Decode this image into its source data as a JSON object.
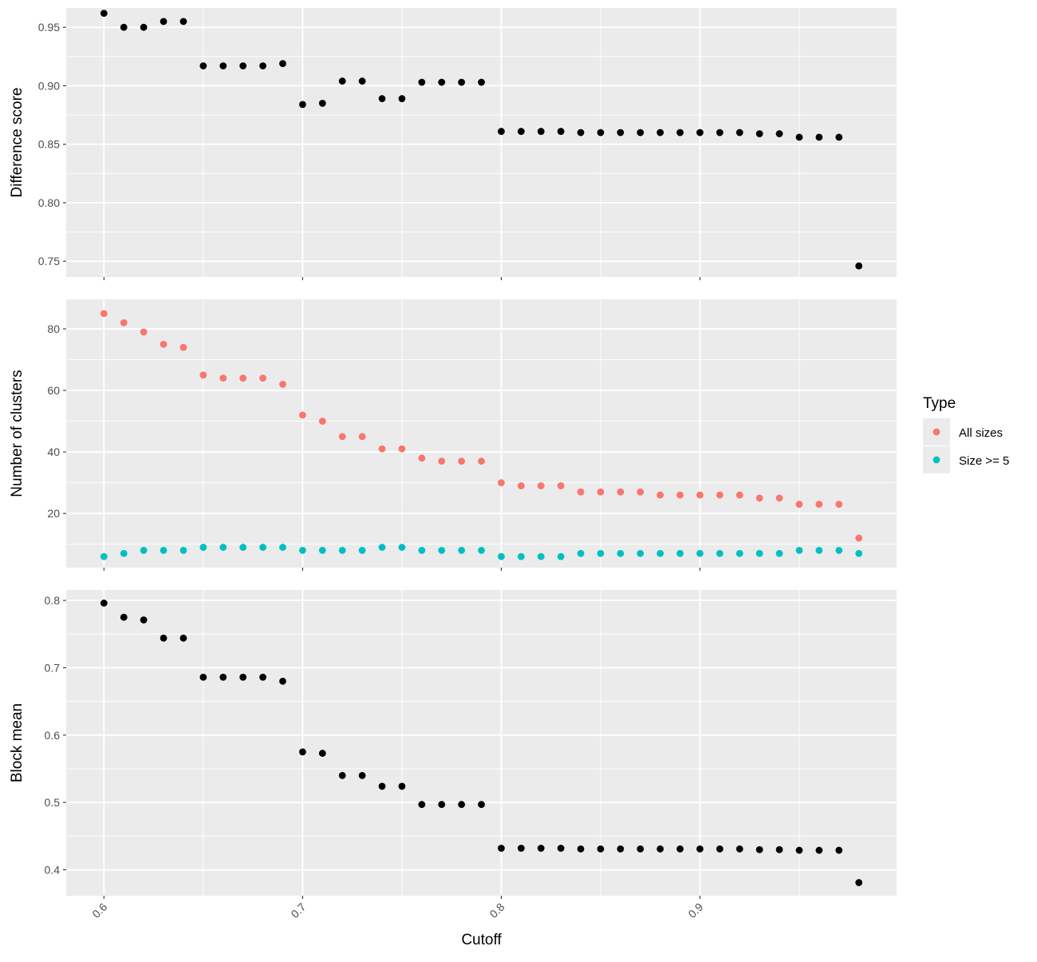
{
  "chart_data": {
    "type": "scatter",
    "xlabel": "Cutoff",
    "x_ticks": [
      0.6,
      0.7,
      0.8,
      0.9
    ],
    "x_tick_labels": [
      "0.6",
      "0.7",
      "0.8",
      "0.9"
    ],
    "xlim": [
      0.581,
      0.999
    ],
    "grid": true,
    "legend_placement": "right",
    "legend": {
      "title": "Type",
      "entries": [
        {
          "label": "All sizes",
          "color": "#F8766D"
        },
        {
          "label": "Size >= 5",
          "color": "#00BFC4"
        }
      ]
    },
    "x": [
      0.6,
      0.61,
      0.62,
      0.63,
      0.64,
      0.65,
      0.66,
      0.67,
      0.68,
      0.69,
      0.7,
      0.71,
      0.72,
      0.73,
      0.74,
      0.75,
      0.76,
      0.77,
      0.78,
      0.79,
      0.8,
      0.81,
      0.82,
      0.83,
      0.84,
      0.85,
      0.86,
      0.87,
      0.88,
      0.89,
      0.9,
      0.91,
      0.92,
      0.93,
      0.94,
      0.95,
      0.96,
      0.97,
      0.98
    ],
    "panels": [
      {
        "ylabel": "Difference score",
        "ylim": [
          0.7365,
          0.9665
        ],
        "y_ticks": [
          0.75,
          0.8,
          0.85,
          0.9,
          0.95
        ],
        "y_tick_labels": [
          "0.75",
          "0.80",
          "0.85",
          "0.90",
          "0.95"
        ],
        "series": [
          {
            "color": "#000000",
            "values": [
              0.962,
              0.95,
              0.95,
              0.955,
              0.955,
              0.917,
              0.917,
              0.917,
              0.917,
              0.919,
              0.884,
              0.885,
              0.904,
              0.904,
              0.889,
              0.889,
              0.903,
              0.903,
              0.903,
              0.903,
              0.861,
              0.861,
              0.861,
              0.861,
              0.86,
              0.86,
              0.86,
              0.86,
              0.86,
              0.86,
              0.86,
              0.86,
              0.86,
              0.859,
              0.859,
              0.856,
              0.856,
              0.856,
              0.746
            ]
          }
        ]
      },
      {
        "ylabel": "Number of clusters",
        "ylim": [
          2.4,
          89.6
        ],
        "y_ticks": [
          20,
          40,
          60,
          80
        ],
        "y_tick_labels": [
          "20",
          "40",
          "60",
          "80"
        ],
        "series": [
          {
            "name": "All sizes",
            "color": "#F8766D",
            "values": [
              85,
              82,
              79,
              75,
              74,
              65,
              64,
              64,
              64,
              62,
              52,
              50,
              45,
              45,
              41,
              41,
              38,
              37,
              37,
              37,
              30,
              29,
              29,
              29,
              27,
              27,
              27,
              27,
              26,
              26,
              26,
              26,
              26,
              25,
              25,
              23,
              23,
              23,
              12
            ]
          },
          {
            "name": "Size >= 5",
            "color": "#00BFC4",
            "values": [
              6,
              7,
              8,
              8,
              8,
              9,
              9,
              9,
              9,
              9,
              8,
              8,
              8,
              8,
              9,
              9,
              8,
              8,
              8,
              8,
              6,
              6,
              6,
              6,
              7,
              7,
              7,
              7,
              7,
              7,
              7,
              7,
              7,
              7,
              7,
              8,
              8,
              8,
              7
            ]
          }
        ]
      },
      {
        "ylabel": "Block mean",
        "ylim": [
          0.3615,
          0.8155
        ],
        "y_ticks": [
          0.4,
          0.5,
          0.6,
          0.7,
          0.8
        ],
        "y_tick_labels": [
          "0.4",
          "0.5",
          "0.6",
          "0.7",
          "0.8"
        ],
        "series": [
          {
            "color": "#000000",
            "values": [
              0.796,
              0.775,
              0.771,
              0.744,
              0.744,
              0.686,
              0.686,
              0.686,
              0.686,
              0.68,
              0.575,
              0.573,
              0.54,
              0.54,
              0.524,
              0.524,
              0.497,
              0.497,
              0.497,
              0.497,
              0.432,
              0.432,
              0.432,
              0.432,
              0.431,
              0.431,
              0.431,
              0.431,
              0.431,
              0.431,
              0.431,
              0.431,
              0.431,
              0.43,
              0.43,
              0.429,
              0.429,
              0.429,
              0.381
            ]
          }
        ]
      }
    ]
  }
}
